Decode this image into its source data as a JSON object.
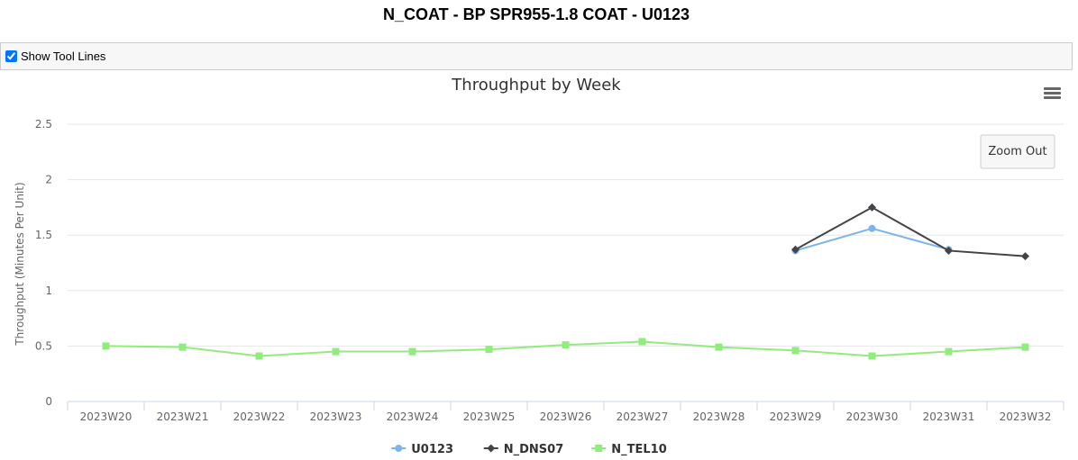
{
  "page_title": "N_COAT - BP SPR955-1.8 COAT - U0123",
  "toolbar": {
    "checkbox_label": "Show Tool Lines",
    "checked": true
  },
  "zoom_button": "Zoom Out",
  "chart_data": {
    "type": "line",
    "title": "Throughput by Week",
    "y_label": "Throughput (Minutes Per Unit)",
    "categories": [
      "2023W20",
      "2023W21",
      "2023W22",
      "2023W23",
      "2023W24",
      "2023W25",
      "2023W26",
      "2023W27",
      "2023W28",
      "2023W29",
      "2023W30",
      "2023W31",
      "2023W32"
    ],
    "ylim": [
      0,
      2.5
    ],
    "yticks": [
      0,
      0.5,
      1,
      1.5,
      2,
      2.5
    ],
    "grid": true,
    "legend": "bottom",
    "series": [
      {
        "name": "U0123",
        "color": "#7cb5ec",
        "marker": "circle",
        "values": [
          null,
          null,
          null,
          null,
          null,
          null,
          null,
          null,
          null,
          1.36,
          1.56,
          1.37,
          null
        ]
      },
      {
        "name": "N_DNS07",
        "color": "#434348",
        "marker": "diamond",
        "values": [
          null,
          null,
          null,
          null,
          null,
          null,
          null,
          null,
          null,
          1.37,
          1.75,
          1.36,
          1.31
        ]
      },
      {
        "name": "N_TEL10",
        "color": "#90ed7d",
        "marker": "square",
        "values": [
          0.5,
          0.49,
          0.41,
          0.45,
          0.45,
          0.47,
          0.51,
          0.54,
          0.49,
          0.46,
          0.41,
          0.45,
          0.49
        ]
      }
    ]
  }
}
